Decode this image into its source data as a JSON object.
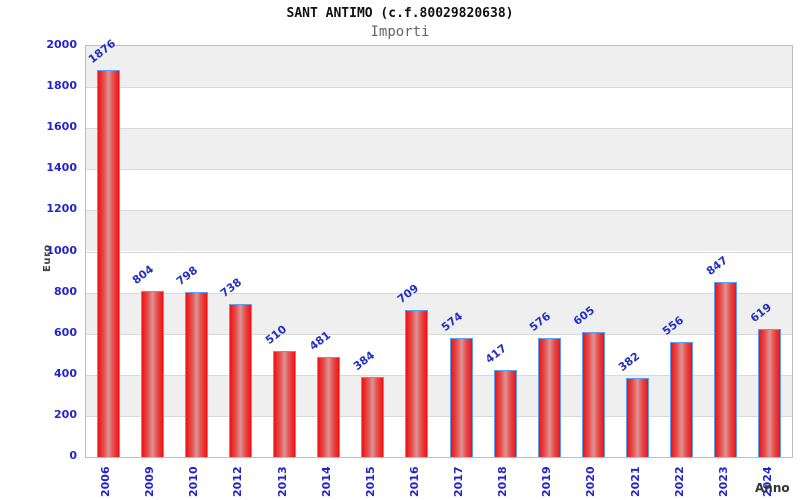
{
  "chart_data": {
    "type": "bar",
    "title": "SANT ANTIMO (c.f.80029820638)",
    "subtitle": "Importi",
    "xlabel": "Anno",
    "ylabel": "Euro",
    "categories": [
      "2006",
      "2009",
      "2010",
      "2012",
      "2013",
      "2014",
      "2015",
      "2016",
      "2017",
      "2018",
      "2019",
      "2020",
      "2021",
      "2022",
      "2023",
      "2024"
    ],
    "values": [
      1876,
      804,
      798,
      738,
      510,
      481,
      384,
      709,
      574,
      417,
      576,
      605,
      382,
      556,
      847,
      619
    ],
    "ylim": [
      0,
      2000
    ],
    "ytick_step": 200,
    "grid": true,
    "legend_position": "none",
    "band_colors": [
      "#efefef",
      "#ffffff"
    ],
    "gridline_color": "#d9d9d9",
    "bar_border_color": "#5b9ef5",
    "bar_gradient": [
      "#f01212",
      "#e54e4e",
      "#dd9494",
      "#e54e4e",
      "#f01212"
    ],
    "value_label_color": "#2230c0",
    "tick_label_color": "#2323cc"
  }
}
